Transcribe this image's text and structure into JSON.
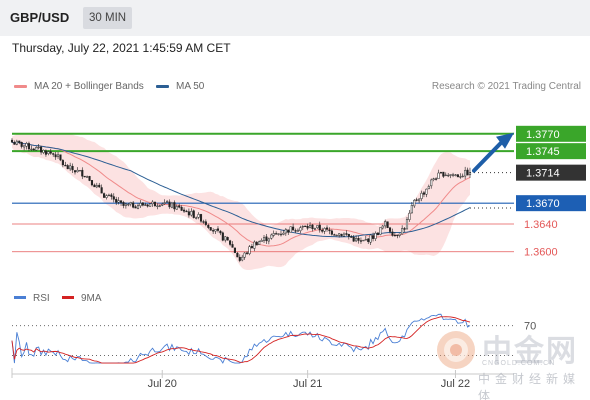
{
  "header": {
    "symbol": "GBP/USD",
    "interval": "30 MIN"
  },
  "date_label": "Thursday, July 22, 2021 1:45:59 AM CET",
  "credit": "Research © 2021 Trading Central",
  "legend": [
    {
      "label": "MA 20 + Bollinger Bands",
      "color": "#f08a8a"
    },
    {
      "label": "MA 50",
      "color": "#2c5f94"
    }
  ],
  "rsi_legend": [
    {
      "label": "RSI",
      "color": "#4a7fd4"
    },
    {
      "label": "9MA",
      "color": "#d42222"
    }
  ],
  "watermark": {
    "name": "中金网",
    "url": "CNGOLD.COM.CN",
    "sub": "中金财经新媒体"
  },
  "chart_data": {
    "type": "candlestick",
    "x_ticks": [
      "Jul 20",
      "Jul 21",
      "Jul 22"
    ],
    "ylim": [
      1.3565,
      1.38
    ],
    "price_levels": [
      {
        "value": 1.377,
        "label": "1.3770",
        "color": "#3aa62a",
        "kind": "resistance"
      },
      {
        "value": 1.3745,
        "label": "1.3745",
        "color": "#3aa62a",
        "kind": "resistance"
      },
      {
        "value": 1.3714,
        "label": "1.3714",
        "color": "#333333",
        "kind": "last"
      },
      {
        "value": 1.367,
        "label": "1.3670",
        "color": "#1d5fb4",
        "kind": "pivot"
      },
      {
        "value": 1.364,
        "label": "1.3640",
        "color": "#e45858",
        "kind": "support"
      },
      {
        "value": 1.36,
        "label": "1.3600",
        "color": "#e45858",
        "kind": "support"
      }
    ],
    "price_anchors": [
      [
        0,
        1.3758
      ],
      [
        10,
        1.3748
      ],
      [
        18,
        1.374
      ],
      [
        22,
        1.3722
      ],
      [
        30,
        1.3712
      ],
      [
        38,
        1.3682
      ],
      [
        46,
        1.3666
      ],
      [
        54,
        1.3668
      ],
      [
        62,
        1.3671
      ],
      [
        70,
        1.3661
      ],
      [
        78,
        1.3648
      ],
      [
        84,
        1.3629
      ],
      [
        90,
        1.3612
      ],
      [
        94,
        1.3588
      ],
      [
        100,
        1.3612
      ],
      [
        108,
        1.3624
      ],
      [
        116,
        1.3634
      ],
      [
        124,
        1.3636
      ],
      [
        130,
        1.363
      ],
      [
        138,
        1.3624
      ],
      [
        144,
        1.3613
      ],
      [
        150,
        1.3624
      ],
      [
        154,
        1.364
      ],
      [
        158,
        1.3624
      ],
      [
        162,
        1.3635
      ],
      [
        166,
        1.3672
      ],
      [
        170,
        1.3686
      ],
      [
        174,
        1.3706
      ],
      [
        178,
        1.3713
      ],
      [
        184,
        1.371
      ],
      [
        188,
        1.3714
      ]
    ],
    "forecast_target": 1.377,
    "rsi": {
      "level": 70,
      "level_label": "70"
    }
  }
}
